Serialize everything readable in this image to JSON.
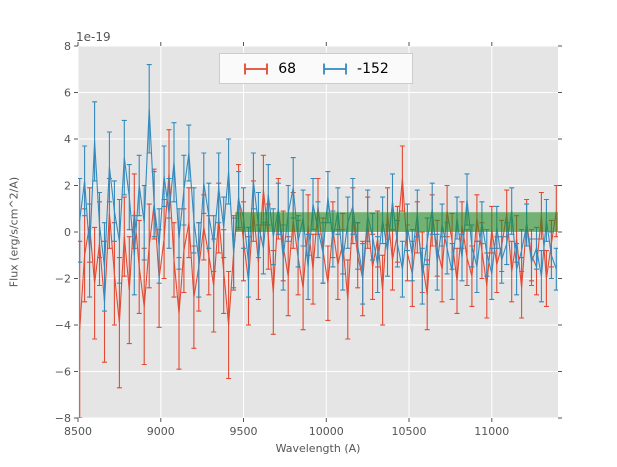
{
  "chart_data": {
    "type": "line",
    "subtype": "errorbar-spectrum",
    "title": "",
    "xlabel": "Wavelength (A)",
    "ylabel": "Flux (erg/s/cm^2/A)",
    "y_offset_factor": "1e-19",
    "xlim": [
      8500,
      11400
    ],
    "ylim": [
      -8,
      8
    ],
    "xticks": [
      8500,
      9000,
      9500,
      10000,
      10500,
      11000
    ],
    "yticks": [
      -8,
      -6,
      -4,
      -2,
      0,
      2,
      4,
      6,
      8
    ],
    "grid": true,
    "plot_bg_color": "#E5E5E5",
    "grid_color": "#FFFFFF",
    "tick_color": "#555555",
    "legend": {
      "position": "upper center",
      "framed": true
    },
    "band": {
      "x_range": [
        9450,
        11400
      ],
      "y_range": [
        0.0,
        0.85
      ],
      "color": "#228B22",
      "alpha": 0.58
    },
    "x_values": [
      8510,
      8540,
      8570,
      8600,
      8630,
      8660,
      8690,
      8720,
      8750,
      8780,
      8810,
      8840,
      8870,
      8900,
      8930,
      8960,
      8990,
      9020,
      9050,
      9080,
      9110,
      9140,
      9170,
      9200,
      9230,
      9260,
      9290,
      9320,
      9350,
      9380,
      9410,
      9440,
      9470,
      9500,
      9530,
      9560,
      9590,
      9620,
      9650,
      9680,
      9710,
      9740,
      9770,
      9800,
      9830,
      9860,
      9890,
      9920,
      9950,
      9980,
      10010,
      10040,
      10070,
      10100,
      10130,
      10160,
      10190,
      10220,
      10250,
      10280,
      10310,
      10340,
      10370,
      10400,
      10430,
      10460,
      10490,
      10520,
      10550,
      10580,
      10610,
      10640,
      10670,
      10700,
      10730,
      10760,
      10790,
      10820,
      10850,
      10880,
      10910,
      10940,
      10970,
      11000,
      11030,
      11060,
      11090,
      11120,
      11150,
      11180,
      11210,
      11240,
      11270,
      11300,
      11330,
      11360,
      11390
    ],
    "series": [
      {
        "name": "68",
        "color": "#E24A33",
        "y": [
          -4.2,
          -1.0,
          0.3,
          -2.2,
          -0.5,
          -3.0,
          0.8,
          -1.8,
          -3.9,
          -0.2,
          -2.5,
          0.9,
          -1.5,
          -3.2,
          -0.6,
          1.2,
          -2.0,
          -0.3,
          2.5,
          -1.2,
          -3.5,
          -0.8,
          0.4,
          -2.8,
          -1.5,
          0.2,
          -1.0,
          -2.3,
          0.6,
          -1.7,
          -4.0,
          -0.9,
          1.5,
          -0.4,
          -2.1,
          0.9,
          -1.3,
          1.8,
          -0.2,
          -2.6,
          1.0,
          -0.6,
          -1.9,
          0.5,
          -1.1,
          -2.4,
          0.3,
          -1.6,
          1.1,
          -0.8,
          -2.2,
          0.1,
          -1.4,
          -0.5,
          -2.9,
          0.7,
          -1.0,
          -2.0,
          0.4,
          -1.5,
          -0.3,
          -2.5,
          0.8,
          -1.2,
          -0.1,
          2.3,
          -0.9,
          -1.8,
          0.2,
          -1.3,
          -2.7,
          0.5,
          -0.7,
          -1.6,
          0.9,
          -0.4,
          -2.1,
          0.3,
          -1.1,
          -1.9,
          0.6,
          -0.8,
          -2.3,
          0.1,
          -1.4,
          -0.6,
          0.8,
          -1.7,
          -0.3,
          -2.4,
          0.4,
          -1.0,
          -1.5,
          0.7,
          -2.0,
          -0.5,
          0.9
        ],
        "yerr": [
          3.8,
          2.0,
          1.6,
          2.4,
          1.8,
          2.6,
          1.5,
          2.2,
          2.8,
          1.7,
          2.3,
          1.6,
          2.0,
          2.5,
          1.8,
          1.5,
          2.1,
          1.7,
          1.9,
          1.6,
          2.4,
          1.8,
          1.5,
          2.2,
          1.9,
          1.4,
          1.7,
          2.0,
          1.5,
          1.8,
          2.3,
          1.6,
          1.4,
          1.7,
          1.9,
          1.3,
          1.6,
          1.5,
          1.4,
          1.8,
          1.3,
          1.5,
          1.7,
          1.2,
          1.6,
          1.8,
          1.3,
          1.5,
          1.2,
          1.4,
          1.6,
          1.2,
          1.5,
          1.3,
          1.7,
          1.2,
          1.4,
          1.6,
          1.1,
          1.4,
          1.2,
          1.5,
          1.1,
          1.3,
          1.2,
          1.4,
          1.2,
          1.4,
          1.1,
          1.3,
          1.5,
          1.1,
          1.2,
          1.4,
          1.1,
          1.2,
          1.4,
          1.0,
          1.2,
          1.3,
          1.0,
          1.2,
          1.4,
          1.0,
          1.2,
          1.1,
          1.0,
          1.3,
          1.0,
          1.3,
          1.0,
          1.1,
          1.2,
          1.0,
          1.2,
          1.0,
          1.1
        ]
      },
      {
        "name": "-152",
        "color": "#348ABD",
        "y": [
          0.5,
          2.2,
          -0.8,
          3.9,
          0.3,
          -1.5,
          2.8,
          0.9,
          -0.4,
          3.2,
          1.5,
          -1.0,
          2.0,
          0.4,
          5.3,
          1.2,
          -0.6,
          2.4,
          0.8,
          3.0,
          -0.3,
          1.8,
          3.4,
          0.5,
          -1.2,
          2.1,
          0.7,
          -0.5,
          1.9,
          0.2,
          2.6,
          -0.9,
          1.4,
          0.6,
          -1.3,
          2.2,
          0.3,
          -0.7,
          1.6,
          -0.2,
          1.0,
          -1.1,
          0.8,
          1.9,
          -0.4,
          0.6,
          -1.5,
          1.2,
          0.1,
          -0.9,
          1.5,
          -0.3,
          0.9,
          -1.2,
          0.4,
          1.1,
          -0.6,
          -1.8,
          0.7,
          -0.2,
          -1.4,
          0.5,
          -0.8,
          1.3,
          -0.5,
          -1.6,
          0.2,
          -1.0,
          0.8,
          -1.9,
          -0.4,
          1.0,
          -1.3,
          0.3,
          -0.7,
          -1.7,
          0.6,
          -1.1,
          1.4,
          -0.6,
          -1.5,
          0.4,
          -0.9,
          -1.8,
          0.2,
          -1.2,
          -0.5,
          0.9,
          -1.6,
          -0.8,
          0.3,
          -1.3,
          -0.7,
          -1.9,
          0.5,
          -1.0,
          -1.6
        ],
        "yerr": [
          1.8,
          1.5,
          2.0,
          1.7,
          1.4,
          1.9,
          1.5,
          1.3,
          1.8,
          1.6,
          1.4,
          1.7,
          1.3,
          1.6,
          1.9,
          1.4,
          1.6,
          1.3,
          1.5,
          1.7,
          1.3,
          1.5,
          1.2,
          1.4,
          1.6,
          1.3,
          1.4,
          1.2,
          1.5,
          1.3,
          1.4,
          1.5,
          1.2,
          1.3,
          1.5,
          1.2,
          1.4,
          1.1,
          1.3,
          1.2,
          1.1,
          1.4,
          1.2,
          1.3,
          1.1,
          1.2,
          1.4,
          1.1,
          1.2,
          1.3,
          1.1,
          1.2,
          1.0,
          1.3,
          1.1,
          1.2,
          1.0,
          1.3,
          1.1,
          1.0,
          1.2,
          1.0,
          1.1,
          1.2,
          1.0,
          1.2,
          1.0,
          1.1,
          1.0,
          1.2,
          1.0,
          1.1,
          1.2,
          0.9,
          1.1,
          1.2,
          0.9,
          1.0,
          1.1,
          0.9,
          1.1,
          0.9,
          1.0,
          1.1,
          0.9,
          1.0,
          0.9,
          1.0,
          1.1,
          0.9,
          0.9,
          1.0,
          0.9,
          1.1,
          0.9,
          1.0,
          0.9
        ]
      }
    ]
  }
}
